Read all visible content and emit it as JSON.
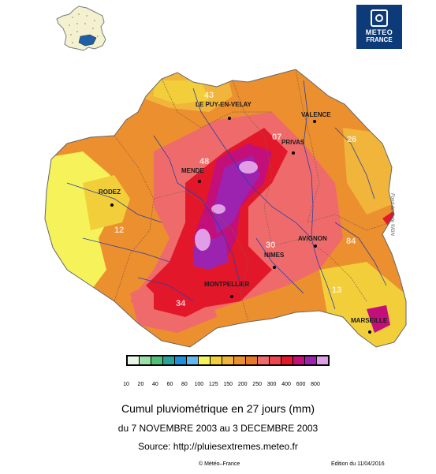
{
  "header": {
    "logo_line1": "METEO",
    "logo_line2": "FRANCE"
  },
  "map": {
    "cities": [
      {
        "name": "LE PUY-EN-VELAY"
      },
      {
        "name": "VALENCE"
      },
      {
        "name": "PRIVAS"
      },
      {
        "name": "MENDE"
      },
      {
        "name": "RODEZ"
      },
      {
        "name": "AVIGNON"
      },
      {
        "name": "NIMES"
      },
      {
        "name": "MONTPELLIER"
      },
      {
        "name": "MARSEILLE"
      }
    ],
    "departments": [
      "43",
      "07",
      "26",
      "48",
      "12",
      "30",
      "84",
      "13",
      "34"
    ],
    "credit": "Fond de carte ©IGN"
  },
  "legend": {
    "colors": [
      "#e8f6e8",
      "#9de0a6",
      "#4fbf7a",
      "#2aa39a",
      "#1e8fd8",
      "#63b8ee",
      "#f6f25a",
      "#f2cf3a",
      "#f0b53a",
      "#ec8f2e",
      "#e8772a",
      "#ef6b6b",
      "#f0454f",
      "#e3172a",
      "#c20f7a",
      "#9b23b0",
      "#e09ee6"
    ],
    "labels": [
      "10",
      "20",
      "40",
      "60",
      "80",
      "100",
      "125",
      "150",
      "200",
      "250",
      "300",
      "400",
      "600",
      "800"
    ]
  },
  "footer": {
    "title": "Cumul pluviométrique en 27 jours (mm)",
    "period": "du 7 NOVEMBRE 2003 au 3 DECEMBRE 2003",
    "source": "Source: http://pluiesextremes.meteo.fr",
    "copyright": "© Météo–France",
    "edition": "Edition du 11/04/2016"
  }
}
